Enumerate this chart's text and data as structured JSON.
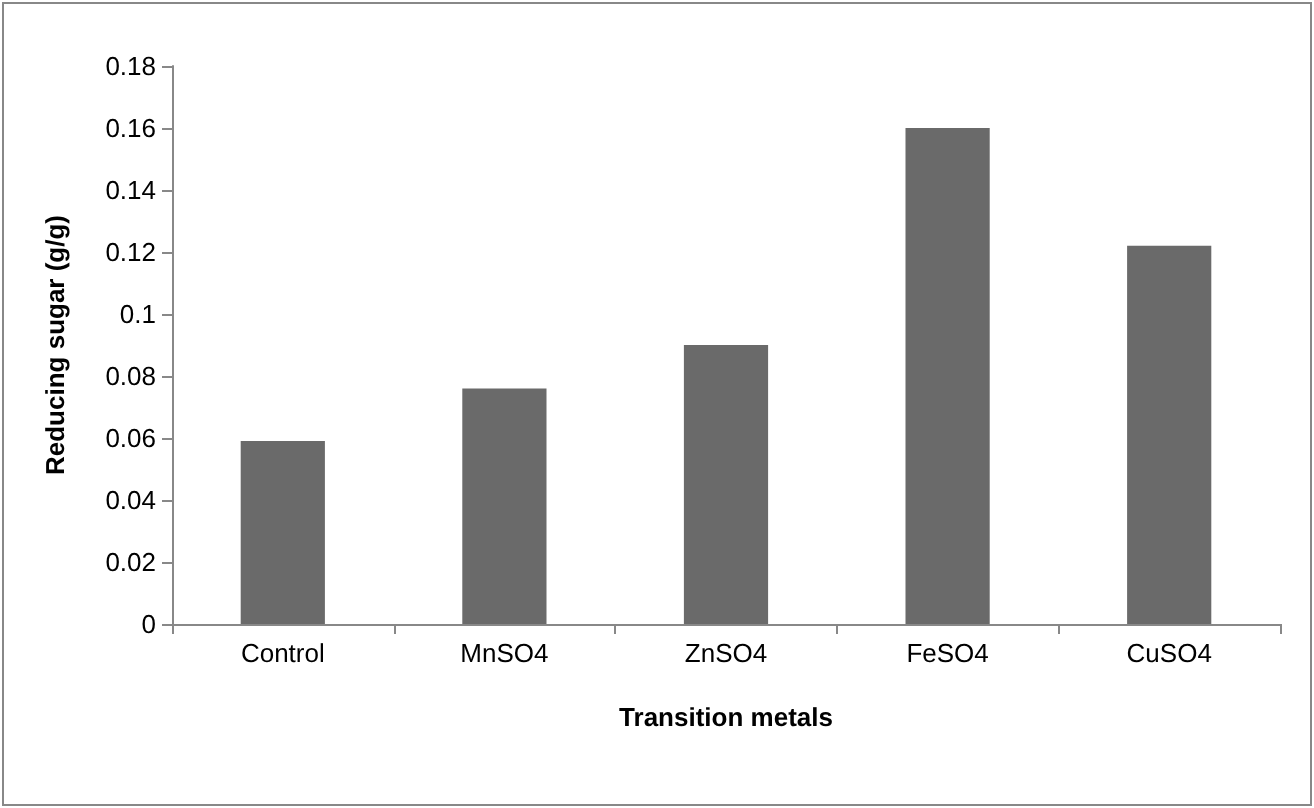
{
  "chart_data": {
    "type": "bar",
    "xlabel": "Transition metals",
    "ylabel": "Reducing sugar (g/g)",
    "categories": [
      "Control",
      "MnSO4",
      "ZnSO4",
      "FeSO4",
      "CuSO4"
    ],
    "values": [
      0.059,
      0.076,
      0.09,
      0.16,
      0.122
    ],
    "color": "#6a6a6a",
    "ylim": [
      0,
      0.18
    ],
    "yticks": [
      0,
      0.02,
      0.04,
      0.06,
      0.08,
      0.1,
      0.12,
      0.14,
      0.16,
      0.18
    ],
    "grid": false
  }
}
